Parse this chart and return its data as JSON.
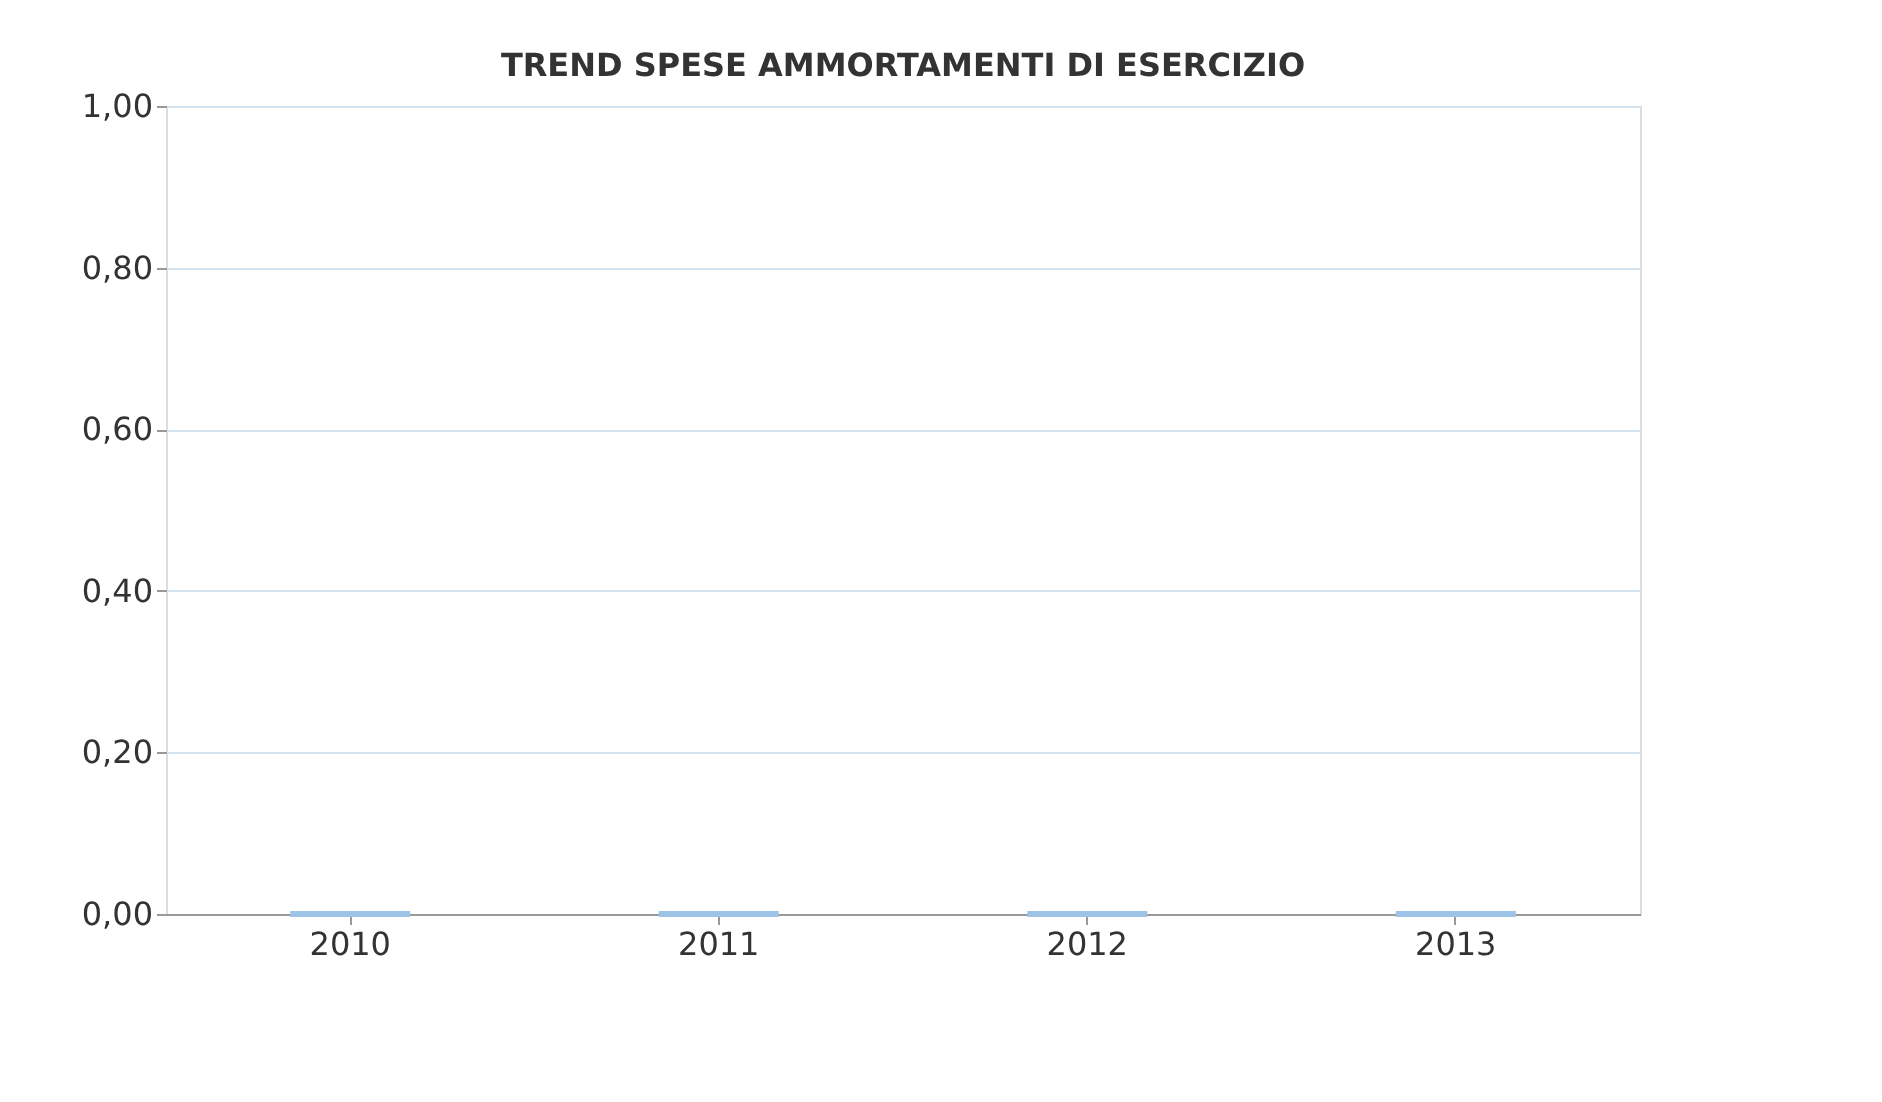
{
  "chart_data": {
    "type": "bar",
    "title": "TREND SPESE AMMORTAMENTI DI ESERCIZIO",
    "categories": [
      "2010",
      "2011",
      "2012",
      "2013"
    ],
    "values": [
      0,
      0,
      0,
      0
    ],
    "color": "#9dc3e6",
    "ylim": [
      0,
      1
    ],
    "yticks": [
      {
        "value": 0,
        "label": "0,00"
      },
      {
        "value": 0.2,
        "label": "0,20"
      },
      {
        "value": 0.4,
        "label": "0,40"
      },
      {
        "value": 0.6,
        "label": "0,60"
      },
      {
        "value": 0.8,
        "label": "0,80"
      },
      {
        "value": 1,
        "label": "1,00"
      }
    ],
    "grid": "y"
  }
}
